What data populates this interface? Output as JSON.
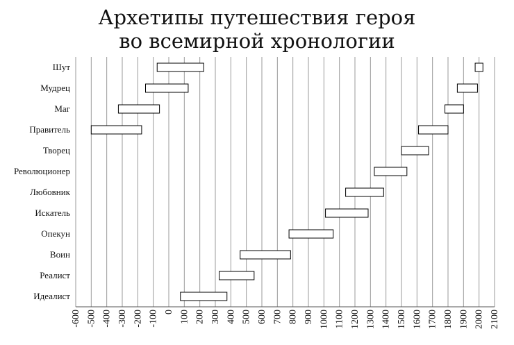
{
  "chart_data": {
    "type": "bar",
    "subtype": "floating-horizontal-range",
    "title_lines": [
      "Архетипы путешествия героя",
      "во всемирной хронологии"
    ],
    "xlabel": "",
    "ylabel": "",
    "xlim": [
      -600,
      2100
    ],
    "x_ticks": [
      -600,
      -500,
      -400,
      -300,
      -200,
      -100,
      0,
      100,
      200,
      300,
      400,
      500,
      600,
      700,
      800,
      900,
      1000,
      1100,
      1200,
      1300,
      1400,
      1500,
      1600,
      1700,
      1800,
      1900,
      2000,
      2100
    ],
    "x_tick_labels": [
      "-600",
      "-500",
      "-400",
      "-300",
      "-200",
      "-100",
      "0",
      "100",
      "200",
      "300",
      "400",
      "500",
      "600",
      "700",
      "800",
      "900",
      "1000",
      "1100",
      "1200",
      "1300",
      "1400",
      "1500",
      "1600",
      "1700",
      "1800",
      "1900",
      "2000",
      "2100"
    ],
    "grid": "vertical",
    "legend": "none",
    "categories": [
      "Шут",
      "Мудрец",
      "Маг",
      "Правитель",
      "Творец",
      "Революционер",
      "Любовник",
      "Искатель",
      "Опекун",
      "Воин",
      "Реалист",
      "Идеалист"
    ],
    "ranges": [
      {
        "start": -75,
        "end": 225
      },
      {
        "start": -150,
        "end": 125
      },
      {
        "start": -325,
        "end": -60
      },
      {
        "start": -500,
        "end": -175
      },
      {
        "start": 1500,
        "end": 1675
      },
      {
        "start": 1325,
        "end": 1535
      },
      {
        "start": 1140,
        "end": 1385
      },
      {
        "start": 1010,
        "end": 1285
      },
      {
        "start": 775,
        "end": 1060
      },
      {
        "start": 460,
        "end": 785
      },
      {
        "start": 325,
        "end": 550
      },
      {
        "start": 75,
        "end": 375
      }
    ],
    "bar_fill": "#ffffff",
    "bar_stroke": "#000000",
    "grid_color": "#9a9a9a"
  },
  "extra_ranges": [
    {
      "category_index": 0,
      "start": 1975,
      "end": 2025
    },
    {
      "category_index": 1,
      "start": 1860,
      "end": 1990
    },
    {
      "category_index": 2,
      "start": 1780,
      "end": 1900
    },
    {
      "category_index": 3,
      "start": 1610,
      "end": 1800
    }
  ]
}
